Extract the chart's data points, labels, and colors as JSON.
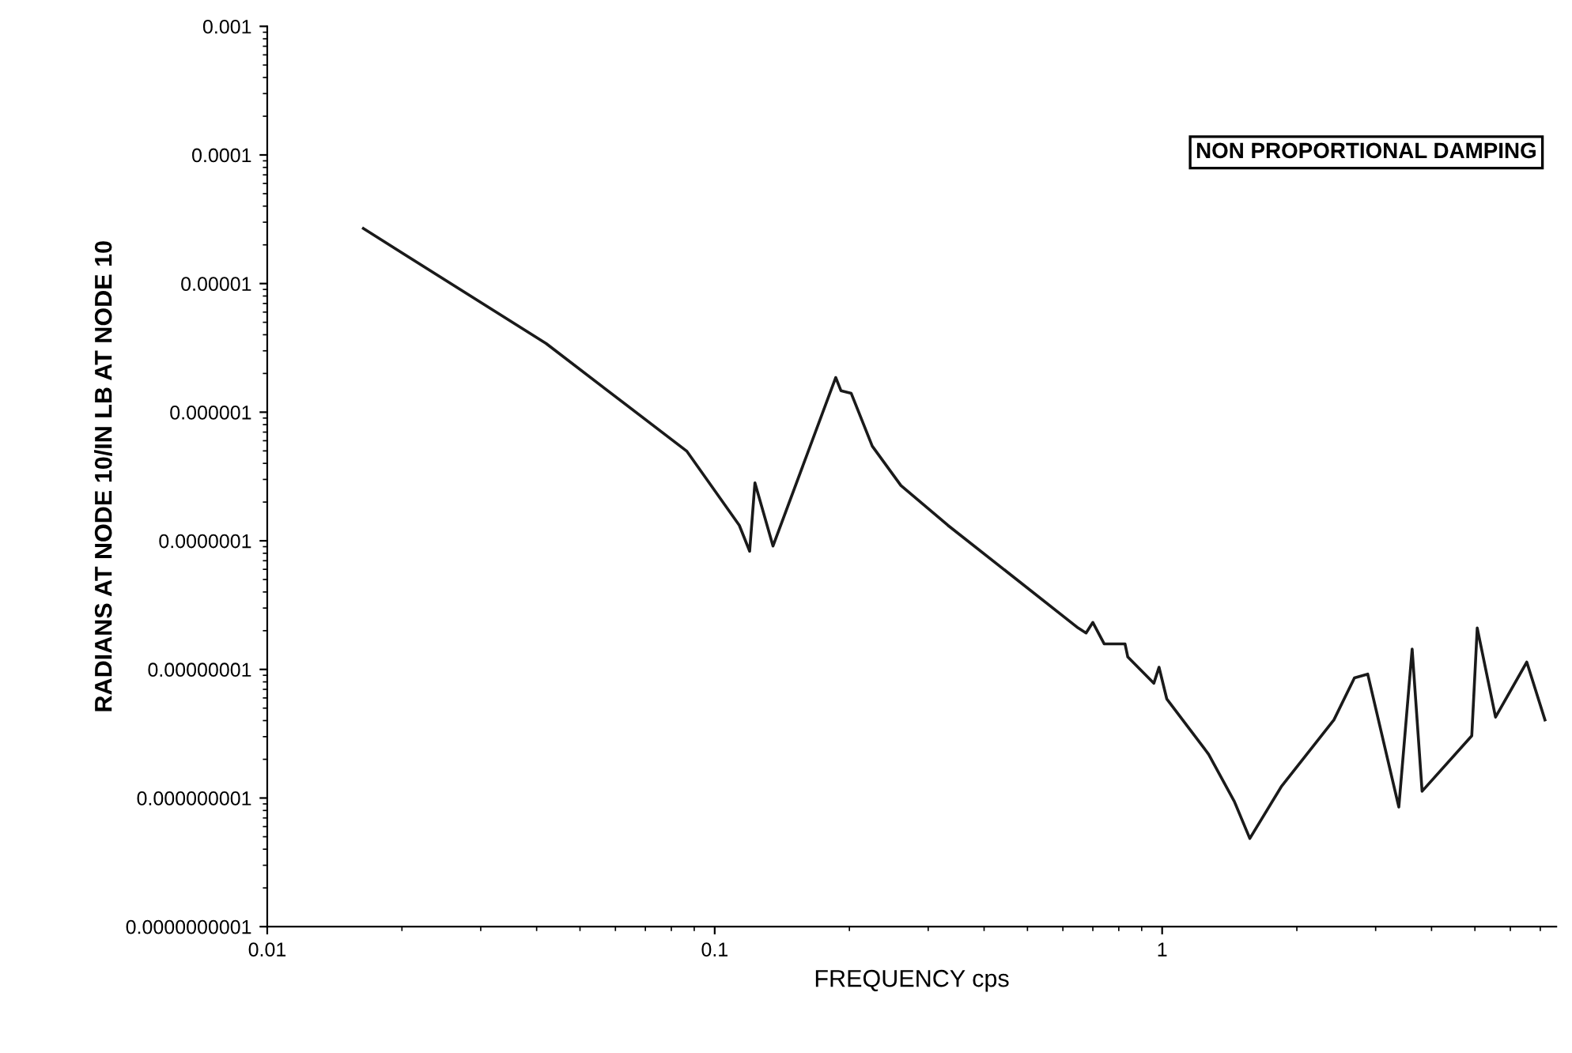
{
  "chart_data": {
    "type": "line",
    "xlabel": "FREQUENCY cps",
    "ylabel": "RADIANS AT NODE 10/IN LB AT NODE 10",
    "annotations": [
      "NON PROPORTIONAL DAMPING"
    ],
    "log": "xy",
    "grid": false,
    "marker": "none",
    "line_style": "solid",
    "xlim": [
      0.01,
      7.6
    ],
    "ylim": [
      1e-10,
      0.001
    ],
    "xticks": [
      0.01,
      0.1,
      1
    ],
    "yticks": [
      {
        "value": 1e-10,
        "label": "0.0000000001"
      },
      {
        "value": 1e-09,
        "label": "0.000000001"
      },
      {
        "value": 1e-08,
        "label": "0.00000001"
      },
      {
        "value": 1e-07,
        "label": "0.0000001"
      },
      {
        "value": 1e-06,
        "label": "0.000001"
      },
      {
        "value": 1e-05,
        "label": "0.00001"
      },
      {
        "value": 0.0001,
        "label": "0.0001"
      },
      {
        "value": 0.001,
        "label": "0.001"
      }
    ],
    "series": [
      {
        "color": "#1a1a1a",
        "x": [
          0.0164,
          0.042,
          0.0867,
          0.1135,
          0.1197,
          0.123,
          0.135,
          0.1864,
          0.1915,
          0.2019,
          0.225,
          0.2607,
          0.332,
          0.649,
          0.676,
          0.7,
          0.742,
          0.826,
          0.838,
          0.958,
          0.984,
          1.024,
          1.27,
          1.45,
          1.57,
          1.85,
          2.42,
          2.69,
          2.88,
          3.38,
          3.62,
          3.81,
          4.92,
          5.06,
          5.56,
          6.53,
          7.17
        ],
        "values": [
          2.68e-05,
          3.42e-06,
          4.96e-07,
          1.32e-07,
          8.3e-08,
          2.82e-07,
          9.1e-08,
          1.86e-06,
          1.47e-06,
          1.4e-06,
          5.44e-07,
          2.69e-07,
          1.32e-07,
          2.1e-08,
          1.92e-08,
          2.32e-08,
          1.58e-08,
          1.58e-08,
          1.25e-08,
          7.8e-09,
          1.04e-08,
          5.9e-09,
          2.19e-09,
          9.4e-10,
          4.85e-10,
          1.24e-09,
          4.05e-09,
          8.6e-09,
          9.2e-09,
          8.5e-10,
          1.44e-08,
          1.13e-09,
          3.05e-09,
          2.1e-08,
          4.25e-09,
          1.14e-08,
          4.05e-09
        ]
      }
    ]
  }
}
